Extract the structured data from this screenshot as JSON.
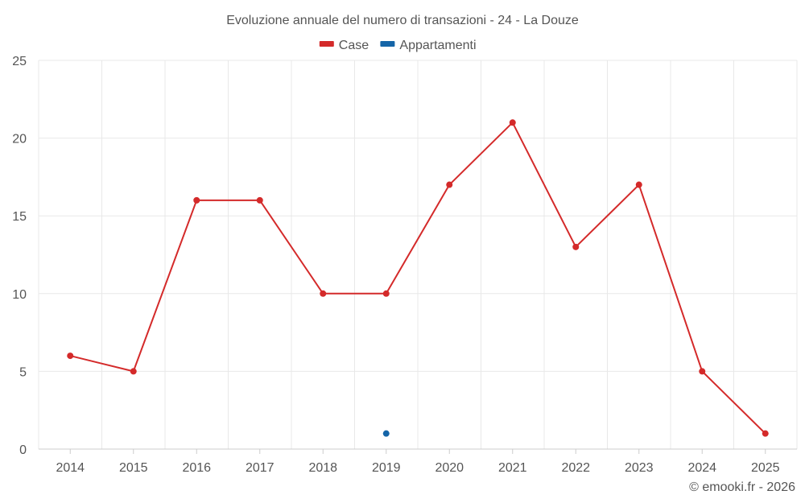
{
  "chart_data": {
    "type": "line",
    "title": "Evoluzione annuale del numero di transazioni - 24 - La Douze",
    "categories": [
      "2014",
      "2015",
      "2016",
      "2017",
      "2018",
      "2019",
      "2020",
      "2021",
      "2022",
      "2023",
      "2024",
      "2025"
    ],
    "series": [
      {
        "name": "Case",
        "color": "#d42a2a",
        "values": [
          6,
          5,
          16,
          16,
          10,
          10,
          17,
          21,
          13,
          17,
          5,
          1
        ]
      },
      {
        "name": "Appartamenti",
        "color": "#1565a8",
        "values": [
          null,
          null,
          null,
          null,
          null,
          1,
          null,
          null,
          null,
          null,
          null,
          null
        ]
      }
    ],
    "ylim": [
      0,
      25
    ],
    "yticks": [
      0,
      5,
      10,
      15,
      20,
      25
    ],
    "xlabel": "",
    "ylabel": "",
    "grid": true,
    "legend_position": "top-center"
  },
  "credit": "© emooki.fr - 2026"
}
